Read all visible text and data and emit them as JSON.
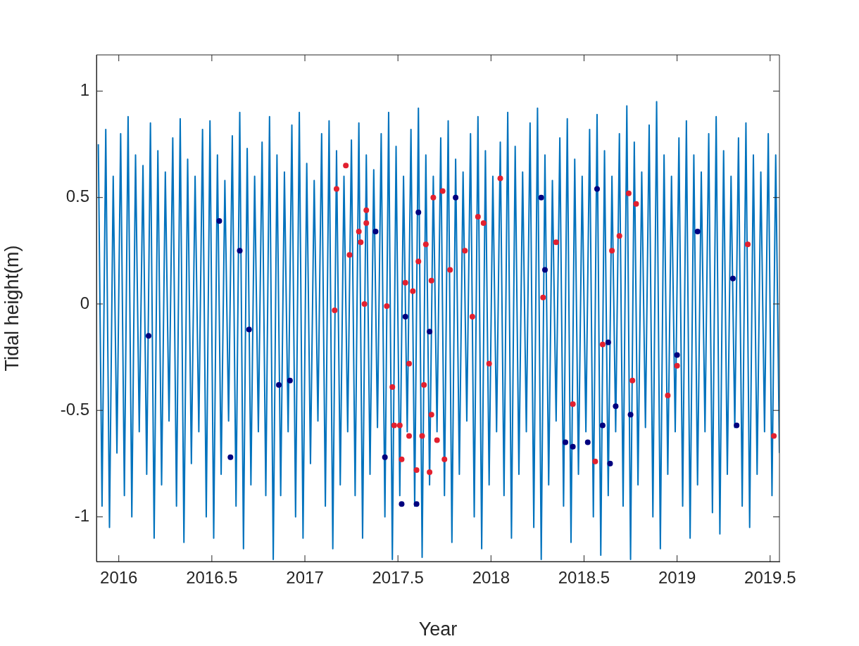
{
  "chart_data": {
    "type": "line",
    "xlabel": "Year",
    "ylabel": "Tidal height(m)",
    "xlim": [
      2015.88,
      2019.55
    ],
    "ylim": [
      -1.21,
      1.17
    ],
    "xticks": [
      2016,
      2016.5,
      2017,
      2017.5,
      2018,
      2018.5,
      2019,
      2019.5
    ],
    "yticks": [
      -1,
      -0.5,
      0,
      0.5,
      1
    ],
    "grid": false,
    "legend": false,
    "series": [
      {
        "color": "#0072bd",
        "marker": "none",
        "line_style": "solid",
        "x": [
          2015.89,
          2015.91,
          2015.93,
          2015.95,
          2015.97,
          2015.99,
          2016.01,
          2016.03,
          2016.05,
          2016.07,
          2016.09,
          2016.11,
          2016.13,
          2016.15,
          2016.17,
          2016.19,
          2016.21,
          2016.23,
          2016.25,
          2016.27,
          2016.29,
          2016.31,
          2016.33,
          2016.35,
          2016.37,
          2016.39,
          2016.41,
          2016.43,
          2016.45,
          2016.47,
          2016.49,
          2016.51,
          2016.53,
          2016.55,
          2016.57,
          2016.59,
          2016.61,
          2016.63,
          2016.65,
          2016.67,
          2016.69,
          2016.71,
          2016.73,
          2016.75,
          2016.77,
          2016.79,
          2016.81,
          2016.83,
          2016.85,
          2016.87,
          2016.89,
          2016.91,
          2016.93,
          2016.95,
          2016.97,
          2016.99,
          2017.01,
          2017.03,
          2017.05,
          2017.07,
          2017.09,
          2017.11,
          2017.13,
          2017.15,
          2017.17,
          2017.19,
          2017.21,
          2017.23,
          2017.25,
          2017.27,
          2017.29,
          2017.31,
          2017.33,
          2017.35,
          2017.37,
          2017.39,
          2017.41,
          2017.43,
          2017.45,
          2017.47,
          2017.49,
          2017.51,
          2017.53,
          2017.55,
          2017.57,
          2017.59,
          2017.61,
          2017.63,
          2017.65,
          2017.67,
          2017.69,
          2017.71,
          2017.73,
          2017.75,
          2017.77,
          2017.79,
          2017.81,
          2017.83,
          2017.85,
          2017.87,
          2017.89,
          2017.91,
          2017.93,
          2017.95,
          2017.97,
          2017.99,
          2018.01,
          2018.03,
          2018.05,
          2018.07,
          2018.09,
          2018.11,
          2018.13,
          2018.15,
          2018.17,
          2018.19,
          2018.21,
          2018.23,
          2018.25,
          2018.27,
          2018.29,
          2018.31,
          2018.33,
          2018.35,
          2018.37,
          2018.39,
          2018.41,
          2018.43,
          2018.45,
          2018.47,
          2018.49,
          2018.51,
          2018.53,
          2018.55,
          2018.57,
          2018.59,
          2018.61,
          2018.63,
          2018.65,
          2018.67,
          2018.69,
          2018.71,
          2018.73,
          2018.75,
          2018.77,
          2018.79,
          2018.81,
          2018.83,
          2018.85,
          2018.87,
          2018.89,
          2018.91,
          2018.93,
          2018.95,
          2018.97,
          2018.99,
          2019.01,
          2019.03,
          2019.05,
          2019.07,
          2019.09,
          2019.11,
          2019.13,
          2019.15,
          2019.17,
          2019.19,
          2019.21,
          2019.23,
          2019.25,
          2019.27,
          2019.29,
          2019.31,
          2019.33,
          2019.35,
          2019.37,
          2019.39,
          2019.41,
          2019.43,
          2019.45,
          2019.47,
          2019.49,
          2019.51,
          2019.53,
          2019.55
        ],
        "values": [
          0.75,
          -0.95,
          0.82,
          -1.05,
          0.6,
          -0.7,
          0.8,
          -0.9,
          0.88,
          -1.0,
          0.7,
          -0.6,
          0.65,
          -0.8,
          0.85,
          -1.1,
          0.72,
          -0.85,
          0.62,
          -0.55,
          0.78,
          -0.95,
          0.87,
          -1.12,
          0.68,
          -0.75,
          0.6,
          -0.6,
          0.82,
          -1.0,
          0.86,
          -1.1,
          0.7,
          -0.8,
          0.58,
          -0.55,
          0.79,
          -0.95,
          0.9,
          -1.15,
          0.73,
          -0.85,
          0.6,
          -0.6,
          0.76,
          -0.9,
          0.88,
          -1.2,
          0.7,
          -0.9,
          0.62,
          -0.6,
          0.84,
          -1.0,
          0.9,
          -1.1,
          0.66,
          -0.75,
          0.58,
          -0.55,
          0.8,
          -0.95,
          0.86,
          -1.15,
          0.72,
          -0.85,
          0.6,
          -0.6,
          0.77,
          -0.9,
          0.85,
          -1.1,
          0.7,
          -0.8,
          0.63,
          -0.58,
          0.8,
          -1.0,
          0.9,
          -1.2,
          0.74,
          -0.9,
          0.6,
          -0.6,
          0.82,
          -0.95,
          0.92,
          -1.19,
          0.7,
          -0.85,
          0.6,
          -0.6,
          0.78,
          -0.9,
          0.86,
          -1.12,
          0.68,
          -0.8,
          0.62,
          -0.55,
          0.8,
          -1.0,
          0.88,
          -1.15,
          0.72,
          -0.85,
          0.6,
          -0.6,
          0.76,
          -0.9,
          0.9,
          -1.1,
          0.74,
          -0.8,
          0.62,
          -0.6,
          0.85,
          -1.05,
          0.92,
          -1.2,
          0.7,
          -0.85,
          0.58,
          -0.55,
          0.78,
          -0.95,
          0.87,
          -1.12,
          0.68,
          -0.8,
          0.6,
          -0.6,
          0.82,
          -1.0,
          0.89,
          -1.18,
          0.72,
          -0.9,
          0.6,
          -0.6,
          0.8,
          -0.95,
          0.93,
          -1.2,
          0.76,
          -0.85,
          0.62,
          -0.58,
          0.84,
          -1.0,
          0.95,
          -1.15,
          0.7,
          -0.8,
          0.6,
          -0.6,
          0.78,
          -0.95,
          0.86,
          -1.1,
          0.7,
          -0.85,
          0.62,
          -0.6,
          0.8,
          -0.98,
          0.88,
          -1.08,
          0.72,
          -0.8,
          0.6,
          -0.58,
          0.78,
          -0.95,
          0.85,
          -1.05,
          0.7,
          -0.8,
          0.62,
          -0.6,
          0.8,
          -0.9,
          0.7,
          -0.7
        ]
      },
      {
        "type": "scatter",
        "color": "#00007f",
        "marker": "circle",
        "x": [
          2016.16,
          2016.54,
          2016.65,
          2016.7,
          2016.86,
          2016.92,
          2016.6,
          2017.81,
          2017.61,
          2017.38,
          2017.54,
          2017.67,
          2017.43,
          2017.52,
          2017.6,
          2018.27,
          2018.57,
          2019.11,
          2018.29,
          2019.3,
          2018.63,
          2019.0,
          2018.67,
          2018.75,
          2018.6,
          2019.32,
          2018.4,
          2018.44,
          2018.52,
          2018.64
        ],
        "values": [
          -0.15,
          0.39,
          0.25,
          -0.12,
          -0.38,
          -0.36,
          -0.72,
          0.5,
          0.43,
          0.34,
          -0.06,
          -0.13,
          -0.72,
          -0.94,
          -0.94,
          0.5,
          0.54,
          0.34,
          0.16,
          0.12,
          -0.18,
          -0.24,
          -0.48,
          -0.52,
          -0.57,
          -0.57,
          -0.65,
          -0.67,
          -0.65,
          -0.75
        ]
      },
      {
        "type": "scatter",
        "color": "#e2202f",
        "marker": "circle",
        "x": [
          2017.22,
          2017.17,
          2017.33,
          2017.33,
          2017.29,
          2017.3,
          2017.24,
          2017.16,
          2017.32,
          2017.44,
          2017.69,
          2017.74,
          2018.05,
          2017.93,
          2017.96,
          2017.65,
          2017.86,
          2017.61,
          2017.78,
          2017.68,
          2017.54,
          2017.58,
          2017.9,
          2017.56,
          2017.99,
          2017.64,
          2017.47,
          2017.68,
          2017.48,
          2017.51,
          2017.56,
          2017.63,
          2017.71,
          2017.52,
          2017.75,
          2017.6,
          2017.67,
          2018.74,
          2018.78,
          2018.35,
          2018.69,
          2018.65,
          2019.38,
          2018.28,
          2018.6,
          2019.0,
          2018.76,
          2018.95,
          2018.44,
          2019.52,
          2018.56
        ],
        "values": [
          0.65,
          0.54,
          0.44,
          0.38,
          0.34,
          0.29,
          0.23,
          -0.03,
          0.0,
          -0.01,
          0.5,
          0.53,
          0.59,
          0.41,
          0.38,
          0.28,
          0.25,
          0.2,
          0.16,
          0.11,
          0.1,
          0.06,
          -0.06,
          -0.28,
          -0.28,
          -0.38,
          -0.39,
          -0.52,
          -0.57,
          -0.57,
          -0.62,
          -0.62,
          -0.64,
          -0.73,
          -0.73,
          -0.78,
          -0.79,
          0.52,
          0.47,
          0.29,
          0.32,
          0.25,
          0.28,
          0.03,
          -0.19,
          -0.29,
          -0.36,
          -0.43,
          -0.47,
          -0.62,
          -0.74
        ]
      }
    ]
  }
}
